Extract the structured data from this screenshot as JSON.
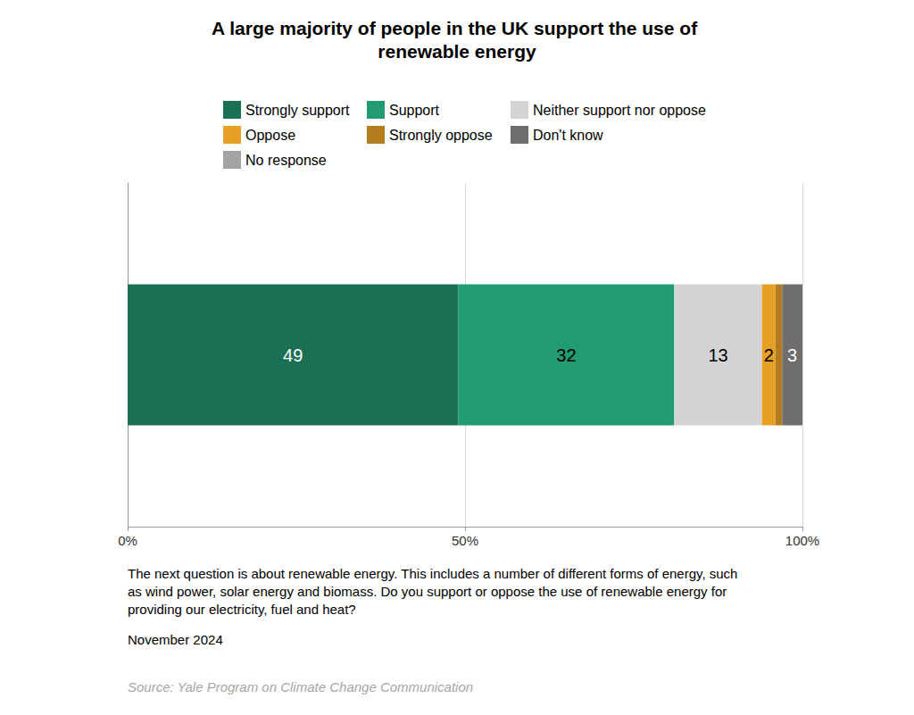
{
  "chart_data": {
    "type": "bar",
    "orientation": "horizontal",
    "stacked": true,
    "data_labels": true,
    "grid": true,
    "title": "A large majority of people in the UK support the use of renewable energy",
    "categories": [
      null
    ],
    "series": [
      {
        "name": "Strongly support",
        "color": "#1a6f55",
        "values": [
          49
        ]
      },
      {
        "name": "Support",
        "color": "#219b72",
        "values": [
          32
        ]
      },
      {
        "name": "Neither support nor oppose",
        "color": "#d4d4d4",
        "values": [
          13
        ]
      },
      {
        "name": "Oppose",
        "color": "#e8a024",
        "values": [
          2
        ]
      },
      {
        "name": "Strongly oppose",
        "color": "#b47b1f",
        "values": [
          1
        ],
        "data_labels": false
      },
      {
        "name": "Don't know",
        "color": "#6e6e6e",
        "values": [
          3
        ]
      },
      {
        "name": "No response",
        "color": "#a3a3a3",
        "values": [
          0
        ],
        "data_labels": false
      }
    ],
    "xlim": [
      0,
      100
    ],
    "xticks": [
      {
        "value": 0,
        "label": "0%"
      },
      {
        "value": 50,
        "label": "50%"
      },
      {
        "value": 100,
        "label": "100%"
      }
    ],
    "annotations": [
      "The next question is about renewable energy. This includes a number of different forms of energy, such as wind power, solar energy and biomass. Do you support or oppose the use of renewable energy for providing our electricity, fuel and heat?",
      "November 2024",
      "Source: Yale Program on Climate Change Communication"
    ]
  }
}
